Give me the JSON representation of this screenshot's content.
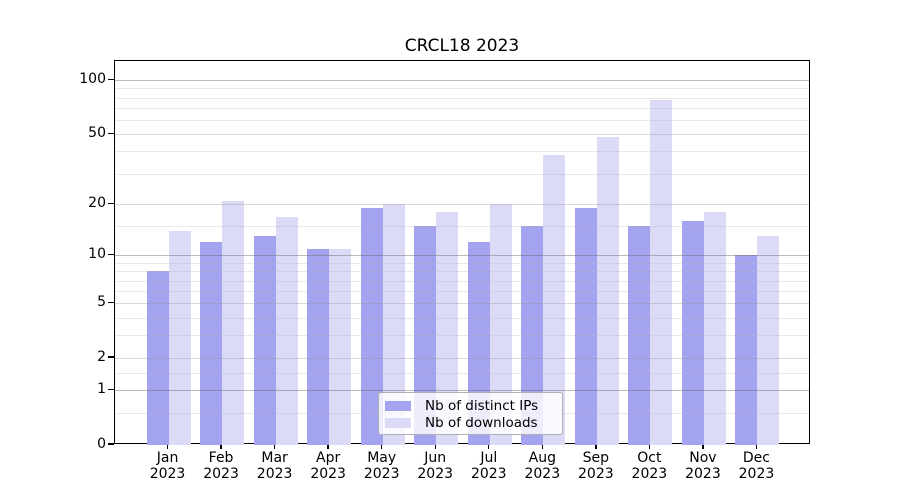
{
  "chart_data": {
    "type": "bar",
    "title": "CRCL18 2023",
    "categories": [
      "Jan",
      "Feb",
      "Mar",
      "Apr",
      "May",
      "Jun",
      "Jul",
      "Aug",
      "Sep",
      "Oct",
      "Nov",
      "Dec"
    ],
    "x_year": "2023",
    "series": [
      {
        "name": "Nb of distinct IPs",
        "color": "#a3a3f0",
        "values": [
          8,
          12,
          13,
          11,
          19,
          15,
          12,
          15,
          19,
          15,
          16,
          10
        ]
      },
      {
        "name": "Nb of downloads",
        "color": "#dbdbf8",
        "values": [
          14,
          21,
          17,
          11,
          20,
          18,
          20,
          38,
          48,
          78,
          18,
          13
        ]
      }
    ],
    "xlabel": "",
    "ylabel": "",
    "yscale": "log1p",
    "ylim": [
      0,
      127
    ],
    "yticks": [
      0,
      1,
      2,
      5,
      10,
      20,
      50,
      100
    ],
    "minor_yticks": [
      0.5,
      1.5,
      3,
      4,
      6,
      7,
      8,
      9,
      15,
      30,
      40,
      60,
      70,
      80,
      90
    ],
    "grid": "on",
    "legend_position": "lower center inside plot"
  },
  "colors": {
    "distinct_ips_bar": "#a3a3f0",
    "downloads_bar": "#dbdbf8",
    "major_gridline": "#b6b6b6",
    "minor_gridline": "#e8e8e8",
    "axis": "#000000",
    "background": "#ffffff"
  }
}
